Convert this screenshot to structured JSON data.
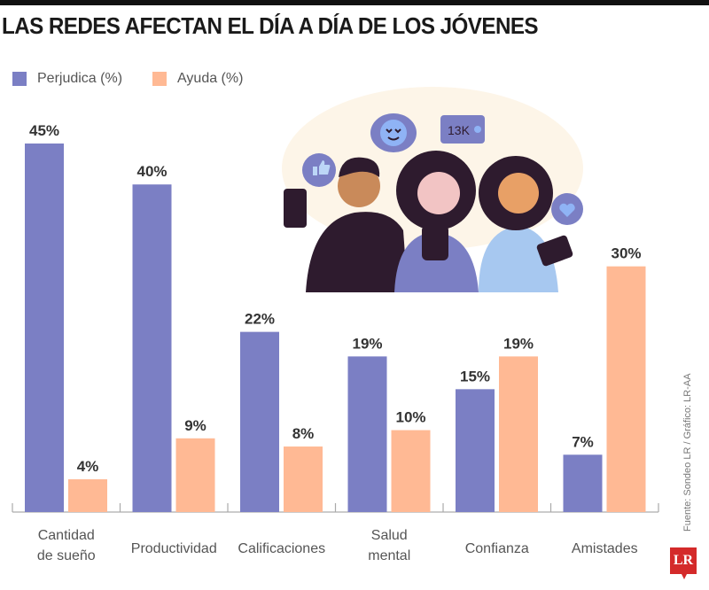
{
  "chart_data": {
    "type": "bar",
    "title": "LAS REDES AFECTAN EL DÍA A DÍA DE LOS JÓVENES",
    "xlabel": "",
    "ylabel": "",
    "ylim": [
      0,
      45
    ],
    "grid": false,
    "legend_position": "top-left",
    "categories": [
      "Cantidad de sueño",
      "Productividad",
      "Calificaciones",
      "Salud mental",
      "Confianza",
      "Amistades"
    ],
    "category_lines": [
      [
        "Cantidad",
        "de sueño"
      ],
      [
        "Productividad"
      ],
      [
        "Calificaciones"
      ],
      [
        "Salud",
        "mental"
      ],
      [
        "Confianza"
      ],
      [
        "Amistades"
      ]
    ],
    "series": [
      {
        "name": "Perjudica (%)",
        "color": "#7b7fc4",
        "values": [
          45,
          40,
          22,
          19,
          15,
          7
        ]
      },
      {
        "name": "Ayuda (%)",
        "color": "#ffb994",
        "values": [
          4,
          9,
          8,
          10,
          19,
          30
        ]
      }
    ],
    "value_suffix": "%"
  },
  "source": "Fuente: Sondeo LR / Gráfico: LR-AA",
  "logo": "LR",
  "illustration": {
    "bubble_count": "13K",
    "bubble_icons": [
      "thumbs-up-icon",
      "heart-eyes-emoji-icon",
      "followers-count-icon",
      "heart-icon"
    ]
  }
}
